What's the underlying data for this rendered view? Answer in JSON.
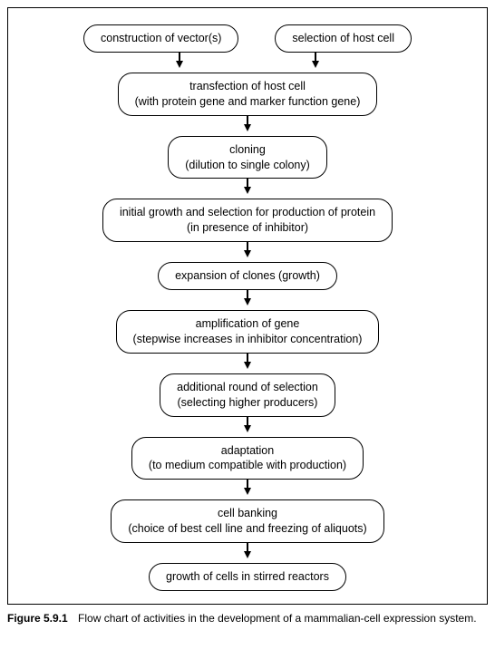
{
  "flowchart": {
    "type": "flowchart",
    "background_color": "#ffffff",
    "border_color": "#000000",
    "node_style": {
      "border_radius": 16,
      "border_color": "#000000",
      "border_width": 1.2,
      "font_size": 12.5,
      "font_family": "Arial",
      "text_color": "#000000",
      "padding_x": 18,
      "padding_y": 6
    },
    "arrow_style": {
      "stroke": "#000000",
      "shaft_width": 1.2,
      "head_width": 8,
      "head_height": 8,
      "gap_height": 22
    },
    "nodes": {
      "n1": "construction of vector(s)",
      "n2": "selection of host cell",
      "n3_line1": "transfection of host cell",
      "n3_line2": "(with protein gene and marker function gene)",
      "n4_line1": "cloning",
      "n4_line2": "(dilution to single colony)",
      "n5_line1": "initial growth and selection for production of protein",
      "n5_line2": "(in presence of inhibitor)",
      "n6": "expansion of clones (growth)",
      "n7_line1": "amplification of gene",
      "n7_line2": "(stepwise increases in inhibitor concentration)",
      "n8_line1": "additional round of selection",
      "n8_line2": "(selecting higher producers)",
      "n9_line1": "adaptation",
      "n9_line2": "(to medium compatible with production)",
      "n10_line1": "cell banking",
      "n10_line2": "(choice of best cell line and freezing of aliquots)",
      "n11": "growth of cells in stirred reactors"
    },
    "edges": [
      [
        "n1",
        "n3"
      ],
      [
        "n2",
        "n3"
      ],
      [
        "n3",
        "n4"
      ],
      [
        "n4",
        "n5"
      ],
      [
        "n5",
        "n6"
      ],
      [
        "n6",
        "n7"
      ],
      [
        "n7",
        "n8"
      ],
      [
        "n8",
        "n9"
      ],
      [
        "n9",
        "n10"
      ],
      [
        "n10",
        "n11"
      ]
    ]
  },
  "caption": {
    "label": "Figure 5.9.1",
    "text": "Flow chart of activities in the development of a mammalian-cell expression system.",
    "font_size": 12,
    "label_weight": "bold"
  }
}
